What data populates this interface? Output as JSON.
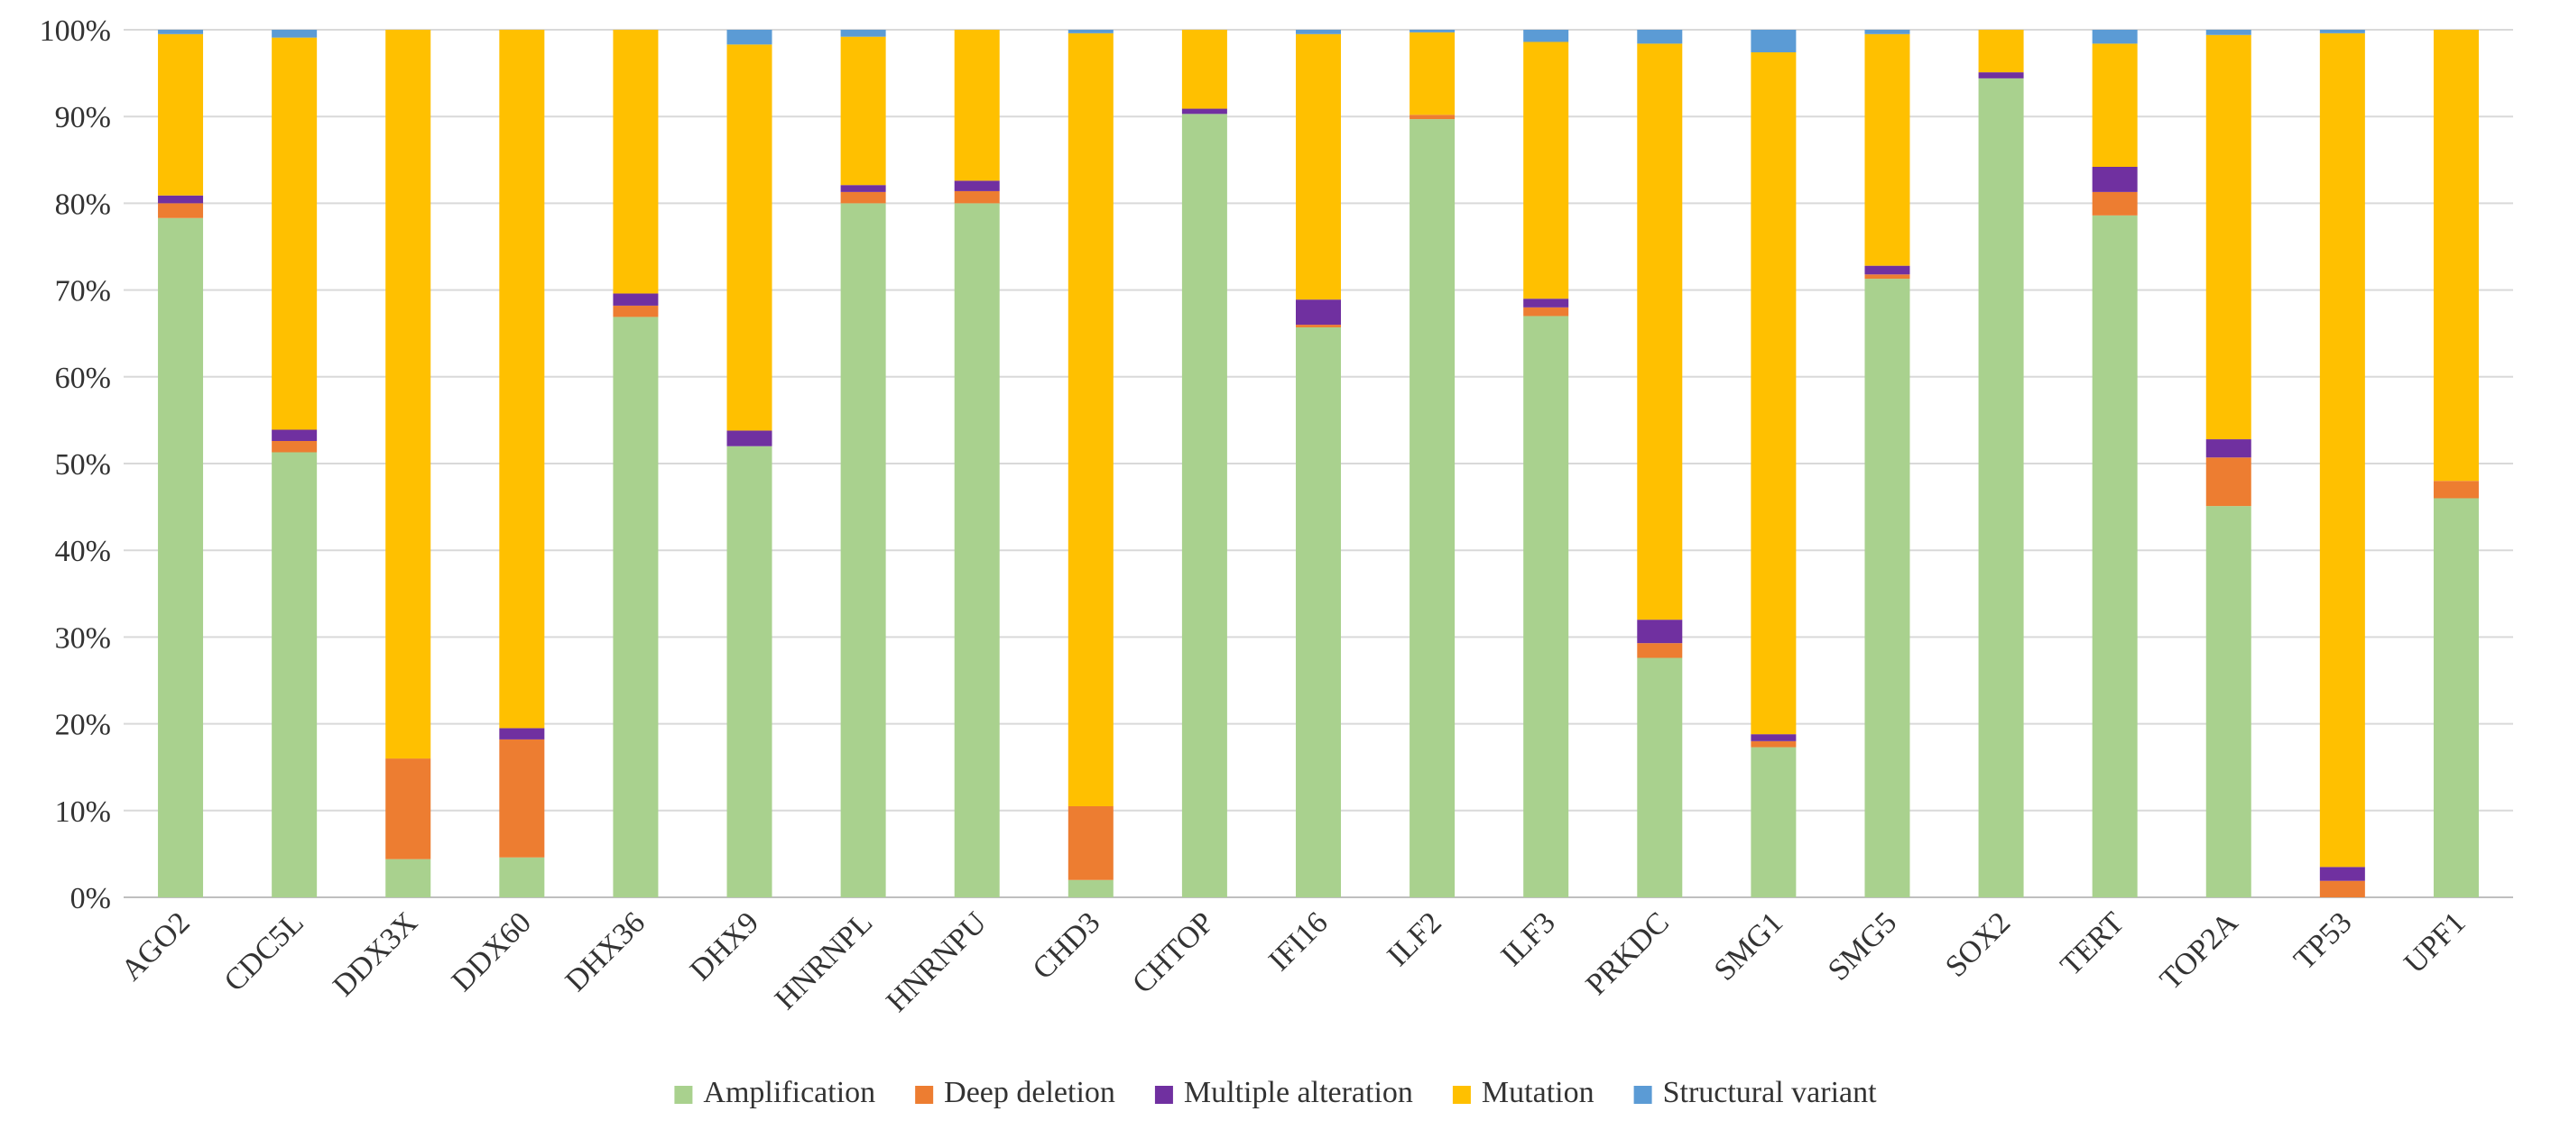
{
  "chart_data": {
    "type": "bar",
    "stacked": true,
    "normalized": true,
    "title": "",
    "xlabel": "",
    "ylabel": "",
    "ylim": [
      0,
      100
    ],
    "yticks": [
      "0%",
      "10%",
      "20%",
      "30%",
      "40%",
      "50%",
      "60%",
      "70%",
      "80%",
      "90%",
      "100%"
    ],
    "grid": true,
    "legend_position": "bottom",
    "categories": [
      "AGO2",
      "CDC5L",
      "DDX3X",
      "DDX60",
      "DHX36",
      "DHX9",
      "HNRNPL",
      "HNRNPU",
      "CHD3",
      "CHTOP",
      "IFI16",
      "ILF2",
      "ILF3",
      "PRKDC",
      "SMG1",
      "SMG5",
      "SOX2",
      "TERT",
      "TOP2A",
      "TP53",
      "UPF1"
    ],
    "series": [
      {
        "name": "Amplification",
        "color": "#a9d18e",
        "values": [
          78.3,
          51.3,
          4.4,
          4.6,
          66.9,
          52.0,
          80.0,
          80.0,
          2.0,
          90.3,
          65.7,
          89.7,
          67.0,
          27.6,
          17.3,
          71.3,
          94.4,
          78.6,
          45.1,
          0.0,
          46.0
        ]
      },
      {
        "name": "Deep deletion",
        "color": "#ed7d31",
        "values": [
          1.7,
          1.3,
          11.6,
          13.6,
          1.3,
          0.0,
          1.3,
          1.4,
          8.5,
          0.0,
          0.3,
          0.5,
          1.0,
          1.7,
          0.7,
          0.5,
          0.0,
          2.7,
          5.6,
          1.9,
          2.0
        ]
      },
      {
        "name": "Multiple alteration",
        "color": "#7030a0",
        "values": [
          0.9,
          1.3,
          0.0,
          1.3,
          1.4,
          1.8,
          0.8,
          1.2,
          0.0,
          0.6,
          2.9,
          0.0,
          1.0,
          2.7,
          0.8,
          1.0,
          0.7,
          2.9,
          2.1,
          1.6,
          0.0
        ]
      },
      {
        "name": "Mutation",
        "color": "#ffc000",
        "values": [
          18.6,
          45.2,
          84.0,
          80.5,
          30.4,
          44.5,
          17.1,
          17.4,
          89.1,
          9.1,
          30.6,
          9.5,
          29.6,
          66.4,
          78.6,
          26.7,
          4.9,
          14.2,
          46.6,
          96.1,
          52.0
        ]
      },
      {
        "name": "Structural variant",
        "color": "#5b9bd5",
        "values": [
          0.5,
          0.9,
          0.0,
          0.0,
          0.0,
          1.7,
          0.8,
          0.0,
          0.4,
          0.0,
          0.5,
          0.3,
          1.4,
          1.6,
          2.6,
          0.5,
          0.0,
          1.6,
          0.6,
          0.4,
          0.0
        ]
      }
    ]
  }
}
